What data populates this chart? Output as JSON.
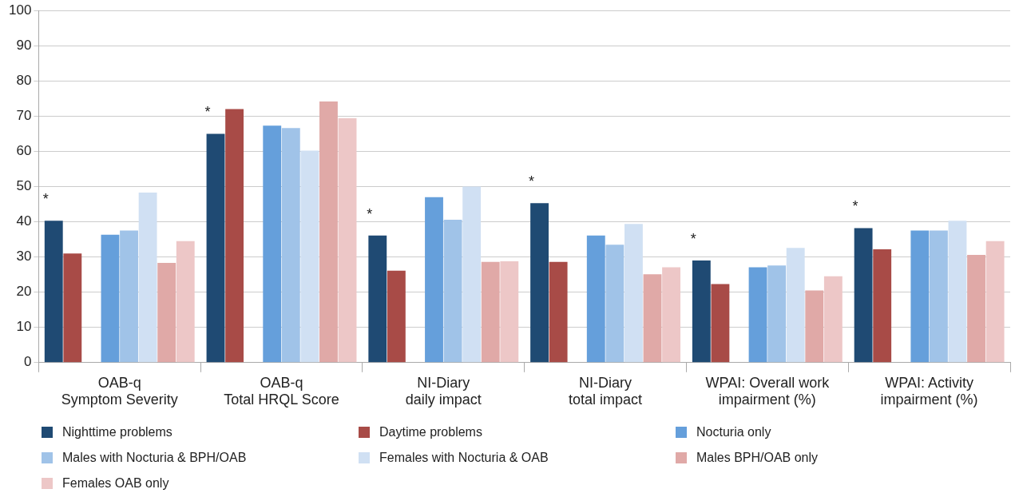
{
  "chart_data": {
    "type": "bar",
    "categories": [
      "OAB-q\nSymptom Severity",
      "OAB-q\nTotal HRQL Score",
      "NI-Diary\ndaily impact",
      "NI-Diary\ntotal impact",
      "WPAI: Overall work\nimpairment (%)",
      "WPAI: Activity\nimpairment (%)"
    ],
    "series": [
      {
        "name": "Nighttime problems",
        "color": "#1f4a73",
        "values": [
          40.3,
          65,
          36.1,
          45.3,
          29,
          38.2
        ]
      },
      {
        "name": "Daytime problems",
        "color": "#a84b47",
        "values": [
          31,
          72,
          26.1,
          28.6,
          22.3,
          32.2
        ]
      },
      {
        "name": "Nocturia only",
        "color": "#659fdb",
        "values": [
          36.3,
          67.3,
          47,
          36.1,
          27.1,
          37.5
        ]
      },
      {
        "name": "Males with Nocturia & BPH/OAB",
        "color": "#a0c3e8",
        "values": [
          37.5,
          66.6,
          40.6,
          33.5,
          27.6,
          37.5
        ]
      },
      {
        "name": "Females with Nocturia & OAB",
        "color": "#d0e0f3",
        "values": [
          48.3,
          60.2,
          50,
          39.4,
          32.6,
          40.3
        ]
      },
      {
        "name": "Males BPH/OAB only",
        "color": "#e0a9a7",
        "values": [
          28.3,
          74.2,
          28.6,
          25.1,
          20.5,
          30.6
        ]
      },
      {
        "name": "Females OAB only",
        "color": "#edc7c7",
        "values": [
          34.5,
          69.4,
          28.8,
          27.1,
          24.5,
          34.5
        ]
      }
    ],
    "ylim": [
      0,
      100
    ],
    "yticks": [
      0,
      10,
      20,
      30,
      40,
      50,
      60,
      70,
      80,
      90,
      100
    ],
    "grid": "y",
    "legend": "bottom",
    "annotations": [
      "*",
      "*",
      "*",
      "*",
      "*",
      "*"
    ]
  }
}
